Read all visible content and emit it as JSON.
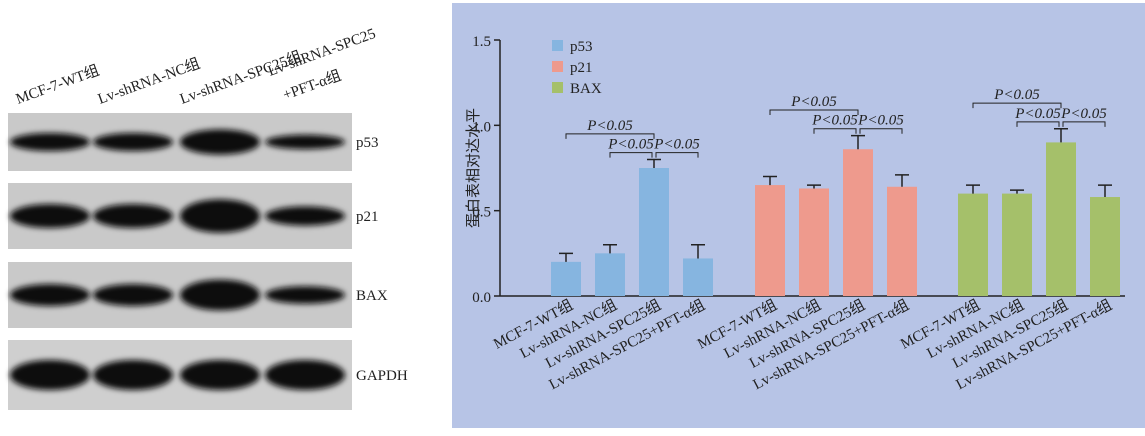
{
  "blot": {
    "lanes": [
      "MCF-7-WT组",
      "Lv-shRNA-NC组",
      "Lv-shRNA-SPC25组",
      "Lv-shRNA-SPC25",
      "+PFT-α组"
    ],
    "proteins": [
      "p53",
      "p21",
      "BAX",
      "GAPDH"
    ]
  },
  "chart_data": {
    "type": "bar",
    "ylabel": "蛋白表相对达水平",
    "categories": [
      "MCF-7-WT组",
      "Lv-shRNA-NC组",
      "Lv-shRNA-SPC25组",
      "Lv-shRNA-SPC25+PFT-α组"
    ],
    "series": [
      {
        "name": "p53",
        "color": "#86b5e0",
        "values": [
          0.2,
          0.25,
          0.75,
          0.22
        ],
        "errors": [
          0.05,
          0.05,
          0.05,
          0.08
        ]
      },
      {
        "name": "p21",
        "color": "#ee9a8d",
        "values": [
          0.65,
          0.63,
          0.86,
          0.64
        ],
        "errors": [
          0.05,
          0.02,
          0.08,
          0.07
        ]
      },
      {
        "name": "BAX",
        "color": "#a5c06a",
        "values": [
          0.6,
          0.6,
          0.9,
          0.58
        ],
        "errors": [
          0.05,
          0.02,
          0.08,
          0.07
        ]
      }
    ],
    "annotations": [
      "P<0.05",
      "P<0.05",
      "P<0.05",
      "P<0.05",
      "P<0.05",
      "P<0.05",
      "P<0.05",
      "P<0.05",
      "P<0.05"
    ],
    "ylim": [
      0,
      1.5
    ],
    "yticks": [
      {
        "value": 0,
        "label": "0.0"
      },
      0.5,
      {
        "value": 1,
        "label": "1.0"
      },
      1.5
    ],
    "legend": "top-left"
  }
}
